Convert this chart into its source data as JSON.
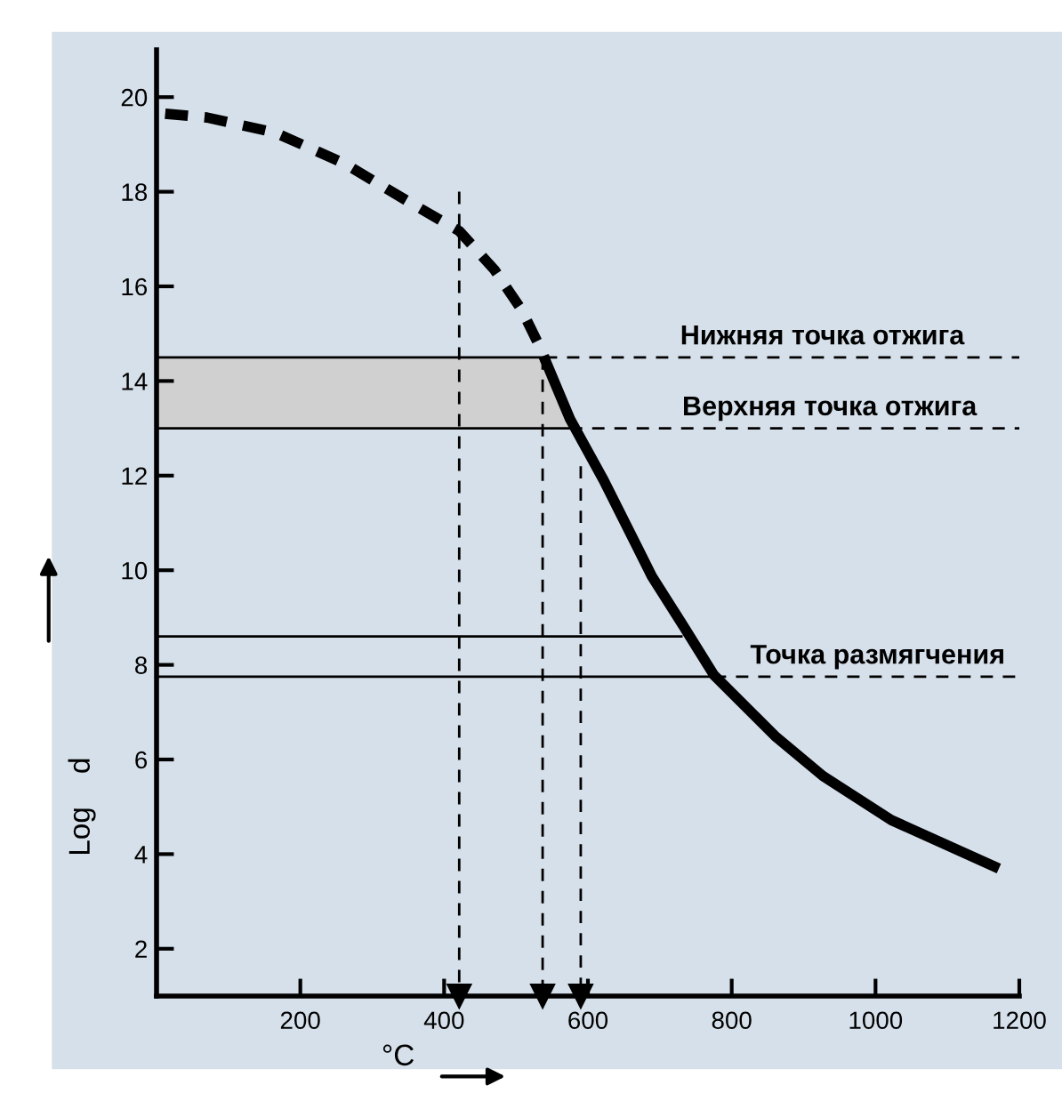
{
  "chart_data": {
    "type": "line",
    "xlabel": "°C",
    "ylabel": "Log    d",
    "xlim": [
      0,
      1200
    ],
    "ylim": [
      1,
      21
    ],
    "xticks": [
      200,
      400,
      600,
      800,
      1000,
      1200
    ],
    "yticks": [
      2,
      4,
      6,
      8,
      10,
      12,
      14,
      16,
      18,
      20
    ],
    "grid": false,
    "legend": false,
    "series": [
      {
        "color": "#000000",
        "line_style": "solid",
        "x": [
          0,
          540
        ],
        "values": [
          14.5,
          14.5
        ]
      },
      {
        "color": "#000000",
        "line_style": "dashed",
        "x": [
          540,
          1200
        ],
        "values": [
          14.5,
          14.5
        ]
      },
      {
        "color": "#000000",
        "line_style": "solid",
        "x": [
          0,
          575
        ],
        "values": [
          13,
          13
        ]
      },
      {
        "color": "#000000",
        "line_style": "dashed",
        "x": [
          575,
          1200
        ],
        "values": [
          13,
          13
        ]
      },
      {
        "color": "#000000",
        "line_style": "solid",
        "x": [
          0,
          730
        ],
        "values": [
          8.6,
          8.6
        ]
      },
      {
        "color": "#000000",
        "line_style": "solid",
        "x": [
          0,
          775
        ],
        "values": [
          7.75,
          7.75
        ]
      },
      {
        "color": "#000000",
        "line_style": "dashed",
        "x": [
          775,
          1200
        ],
        "values": [
          7.75,
          7.75
        ]
      },
      {
        "color": "#000000",
        "line_style": "dashed",
        "marker": "triangle",
        "x": [
          421,
          421
        ],
        "values": [
          18,
          1
        ]
      },
      {
        "color": "#000000",
        "line_style": "dashed",
        "marker": "triangle",
        "x": [
          537,
          537
        ],
        "values": [
          14.5,
          1
        ]
      },
      {
        "color": "#000000",
        "line_style": "dashed",
        "marker": "triangle",
        "x": [
          590,
          590
        ],
        "values": [
          12.2,
          1
        ]
      },
      {
        "color": "#000000",
        "line_style": "dashed",
        "x": [
          12,
          70,
          165,
          261,
          356,
          421,
          470,
          508,
          537,
          541
        ],
        "values": [
          19.65,
          19.57,
          19.25,
          18.6,
          17.74,
          17.17,
          16.35,
          15.5,
          14.6,
          14.43
        ]
      },
      {
        "color": "#000000",
        "line_style": "solid",
        "x": [
          541,
          575,
          622,
          670,
          689,
          737,
          775,
          860,
          927,
          1022,
          1165
        ],
        "values": [
          14.43,
          13.2,
          11.9,
          10.45,
          9.87,
          8.72,
          7.79,
          6.5,
          5.65,
          4.72,
          3.74
        ]
      }
    ],
    "bands": [
      {
        "axis": "y",
        "from": 13,
        "to": 14.5,
        "color": "#d0d0d0"
      }
    ],
    "annotations": [
      {
        "text": "Нижняя точка отжига",
        "x": 926,
        "y": 14.5
      },
      {
        "text": "Верхняя точка отжига",
        "x": 936,
        "y": 13
      },
      {
        "text": "Точка размягчения",
        "x": 1003,
        "y": 7.75
      }
    ]
  }
}
